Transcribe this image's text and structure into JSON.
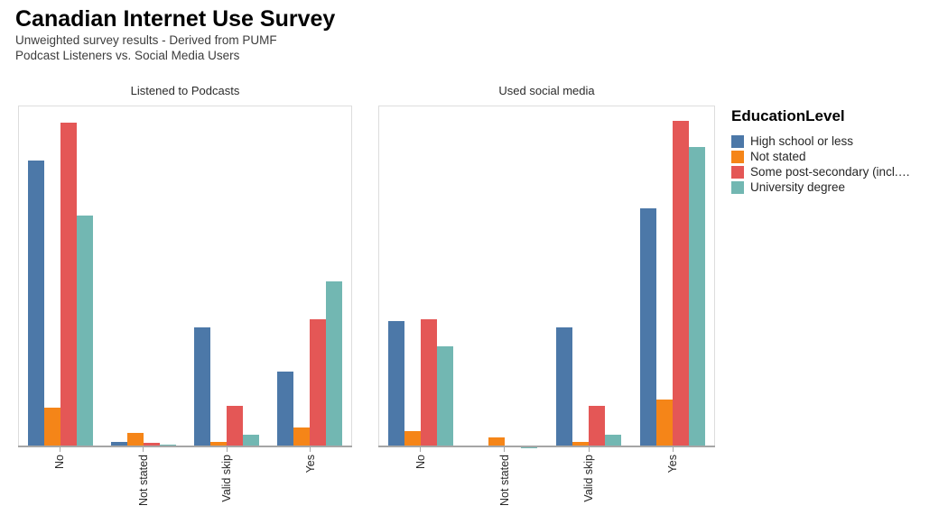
{
  "header": {
    "title": "Canadian Internet Use Survey",
    "subtitle1": "Unweighted survey results - Derived from PUMF",
    "subtitle2": "Podcast Listeners vs. Social Media Users"
  },
  "legend": {
    "title": "EducationLevel",
    "position": "right",
    "items": [
      {
        "label": "High school or less",
        "color": "#4c78a8"
      },
      {
        "label": "Not stated",
        "color": "#f58518"
      },
      {
        "label": "Some post-secondary (incl.…",
        "color": "#e45756"
      },
      {
        "label": "University degree",
        "color": "#72b7b2"
      }
    ]
  },
  "chart_data": [
    {
      "type": "bar",
      "title": "Listened to Podcasts",
      "categories": [
        "No",
        "Not stated",
        "Valid skip",
        "Yes"
      ],
      "series": [
        {
          "name": "High school or less",
          "color": "#4c78a8",
          "values": [
            319,
            6,
            133,
            84
          ]
        },
        {
          "name": "Not stated",
          "color": "#f58518",
          "values": [
            44,
            16,
            6,
            22
          ]
        },
        {
          "name": "Some post-secondary (incl.…",
          "color": "#e45756",
          "values": [
            361,
            5,
            46,
            142
          ]
        },
        {
          "name": "University degree",
          "color": "#72b7b2",
          "values": [
            258,
            3,
            14,
            185
          ]
        }
      ],
      "xlabel": "",
      "ylabel": "",
      "ylim": [
        0,
        379
      ],
      "value_units": "relative bar height (no y-axis tick labels shown in source)",
      "grid": false,
      "x_tick_rotation": -90
    },
    {
      "type": "bar",
      "title": "Used social media",
      "categories": [
        "No",
        "Not stated",
        "Valid skip",
        "Yes"
      ],
      "series": [
        {
          "name": "High school or less",
          "color": "#4c78a8",
          "values": [
            140,
            2.5,
            133,
            266
          ]
        },
        {
          "name": "Not stated",
          "color": "#f58518",
          "values": [
            18,
            11,
            6,
            53
          ]
        },
        {
          "name": "Some post-secondary (incl.…",
          "color": "#e45756",
          "values": [
            142,
            1.5,
            46,
            363
          ]
        },
        {
          "name": "University degree",
          "color": "#72b7b2",
          "values": [
            112,
            0.5,
            14,
            334
          ]
        }
      ],
      "xlabel": "",
      "ylabel": "",
      "ylim": [
        0,
        379
      ],
      "value_units": "relative bar height (no y-axis tick labels shown in source)",
      "grid": false,
      "x_tick_rotation": -90
    }
  ]
}
